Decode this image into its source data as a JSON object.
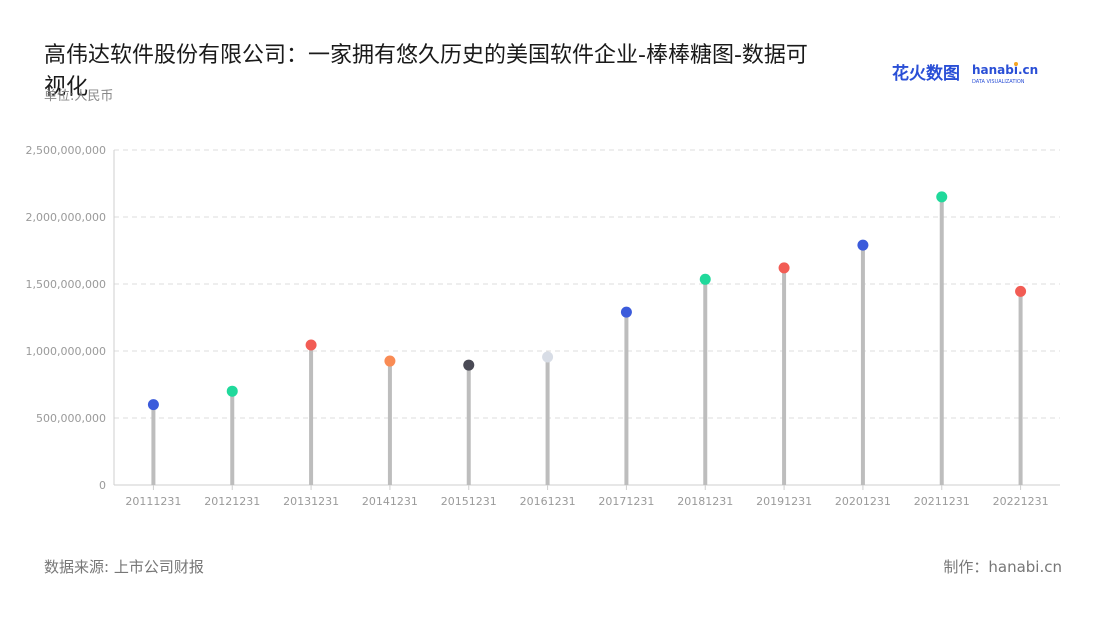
{
  "title": "高伟达软件股份有限公司：一家拥有悠久历史的美国软件企业-棒棒糖图-数据可视化",
  "unit": "单位:人民币",
  "source": "数据来源: 上市公司财报",
  "credit": "制作：hanabi.cn",
  "logo": {
    "cn_text": "花火数图",
    "en_text": "hanabi.cn",
    "sub_text": "DATA VISUALIZATION",
    "color": "#2a4fd6",
    "accent": "#f5a623"
  },
  "chart_data": {
    "type": "lollipop",
    "categories": [
      "20111231",
      "20121231",
      "20131231",
      "20141231",
      "20151231",
      "20161231",
      "20171231",
      "20181231",
      "20191231",
      "20201231",
      "20211231",
      "20221231"
    ],
    "values": [
      600000000,
      700000000,
      1045000000,
      925000000,
      895000000,
      955000000,
      1290000000,
      1535000000,
      1620000000,
      1790000000,
      2150000000,
      1445000000
    ],
    "dot_colors": [
      "#3b5bdb",
      "#20d99b",
      "#f25c54",
      "#f98b54",
      "#4a4a55",
      "#d8dde6",
      "#3b5bdb",
      "#20d99b",
      "#f25c54",
      "#3b5bdb",
      "#20d99b",
      "#f25c54"
    ],
    "stem_color": "#bdbdbd",
    "ylim": [
      0,
      2500000000
    ],
    "yticks": [
      0,
      500000000,
      1000000000,
      1500000000,
      2000000000,
      2500000000
    ],
    "ytick_labels": [
      "0",
      "500,000,000",
      "1,000,000,000",
      "1,500,000,000",
      "2,000,000,000",
      "2,500,000,000"
    ],
    "grid": true,
    "xlabel": "",
    "ylabel": ""
  }
}
